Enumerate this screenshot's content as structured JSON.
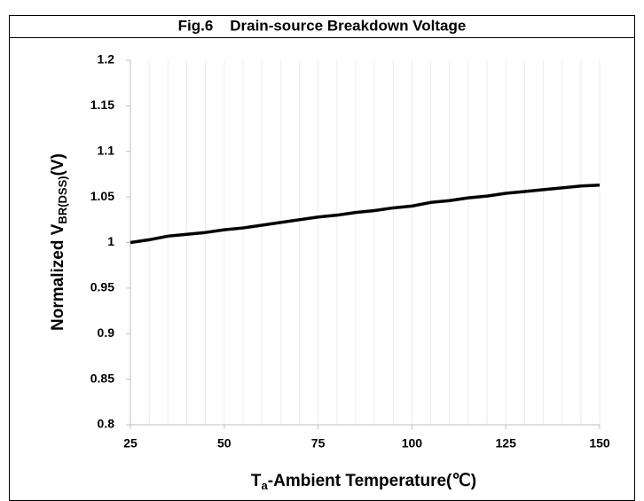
{
  "chart_data": {
    "type": "line",
    "title": "Fig.6    Drain-source Breakdown Voltage",
    "x_label": [
      "T",
      "a",
      "-Ambient Temperature(℃)"
    ],
    "y_label": [
      "Normalized V",
      "BR(DSS)",
      "(V)"
    ],
    "x": [
      25,
      30,
      35,
      40,
      45,
      50,
      55,
      60,
      65,
      70,
      75,
      80,
      85,
      90,
      95,
      100,
      105,
      110,
      115,
      120,
      125,
      130,
      135,
      140,
      145,
      150
    ],
    "series": [
      {
        "color": "#000000",
        "values": [
          1.0,
          1.003,
          1.007,
          1.009,
          1.011,
          1.014,
          1.016,
          1.019,
          1.022,
          1.025,
          1.028,
          1.03,
          1.033,
          1.035,
          1.038,
          1.04,
          1.044,
          1.046,
          1.049,
          1.051,
          1.054,
          1.056,
          1.058,
          1.06,
          1.062,
          1.063
        ]
      }
    ],
    "xlim": [
      25,
      150
    ],
    "xticks": [
      25,
      50,
      75,
      100,
      125,
      150
    ],
    "ylim": [
      0.8,
      1.2
    ],
    "yticks": [
      0.8,
      0.85,
      0.9,
      0.95,
      1,
      1.05,
      1.1,
      1.15,
      1.2
    ],
    "grid": true
  }
}
